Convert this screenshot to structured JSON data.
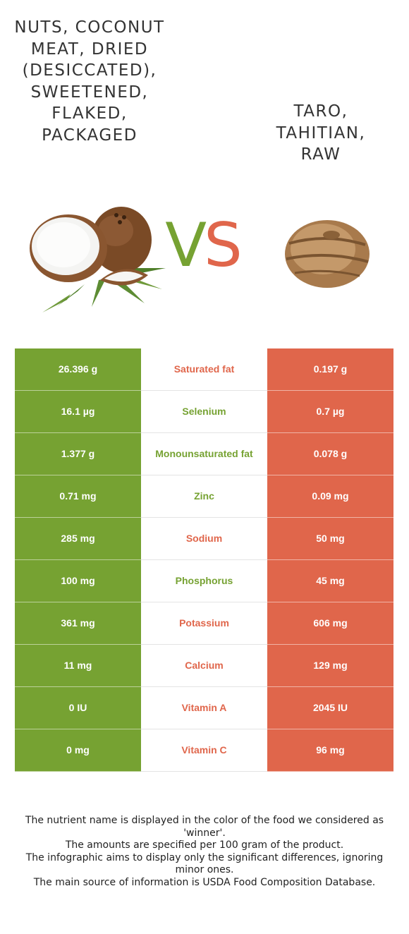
{
  "food_left": {
    "name": "Nuts, coconut meat, dried (desiccated), sweetened, flaked, packaged",
    "color": "#76a232"
  },
  "food_right": {
    "name": "Taro, tahitian, raw",
    "color": "#e0664b"
  },
  "vs": {
    "v": "V",
    "s": "S"
  },
  "rows": [
    {
      "nutrient": "Saturated fat",
      "left": "26.396 g",
      "right": "0.197 g",
      "winner": "right"
    },
    {
      "nutrient": "Selenium",
      "left": "16.1 µg",
      "right": "0.7 µg",
      "winner": "left"
    },
    {
      "nutrient": "Monounsaturated fat",
      "left": "1.377 g",
      "right": "0.078 g",
      "winner": "left"
    },
    {
      "nutrient": "Zinc",
      "left": "0.71 mg",
      "right": "0.09 mg",
      "winner": "left"
    },
    {
      "nutrient": "Sodium",
      "left": "285 mg",
      "right": "50 mg",
      "winner": "right"
    },
    {
      "nutrient": "Phosphorus",
      "left": "100 mg",
      "right": "45 mg",
      "winner": "left"
    },
    {
      "nutrient": "Potassium",
      "left": "361 mg",
      "right": "606 mg",
      "winner": "right"
    },
    {
      "nutrient": "Calcium",
      "left": "11 mg",
      "right": "129 mg",
      "winner": "right"
    },
    {
      "nutrient": "Vitamin A",
      "left": "0 IU",
      "right": "2045 IU",
      "winner": "right"
    },
    {
      "nutrient": "Vitamin C",
      "left": "0 mg",
      "right": "96 mg",
      "winner": "right"
    }
  ],
  "footnotes": [
    "The nutrient name is displayed in the color of the food we considered as 'winner'.",
    "The amounts are specified per 100 gram of the product.",
    "The infographic aims to display only the significant differences, ignoring minor ones.",
    "The main source of information is USDA Food Composition Database."
  ]
}
